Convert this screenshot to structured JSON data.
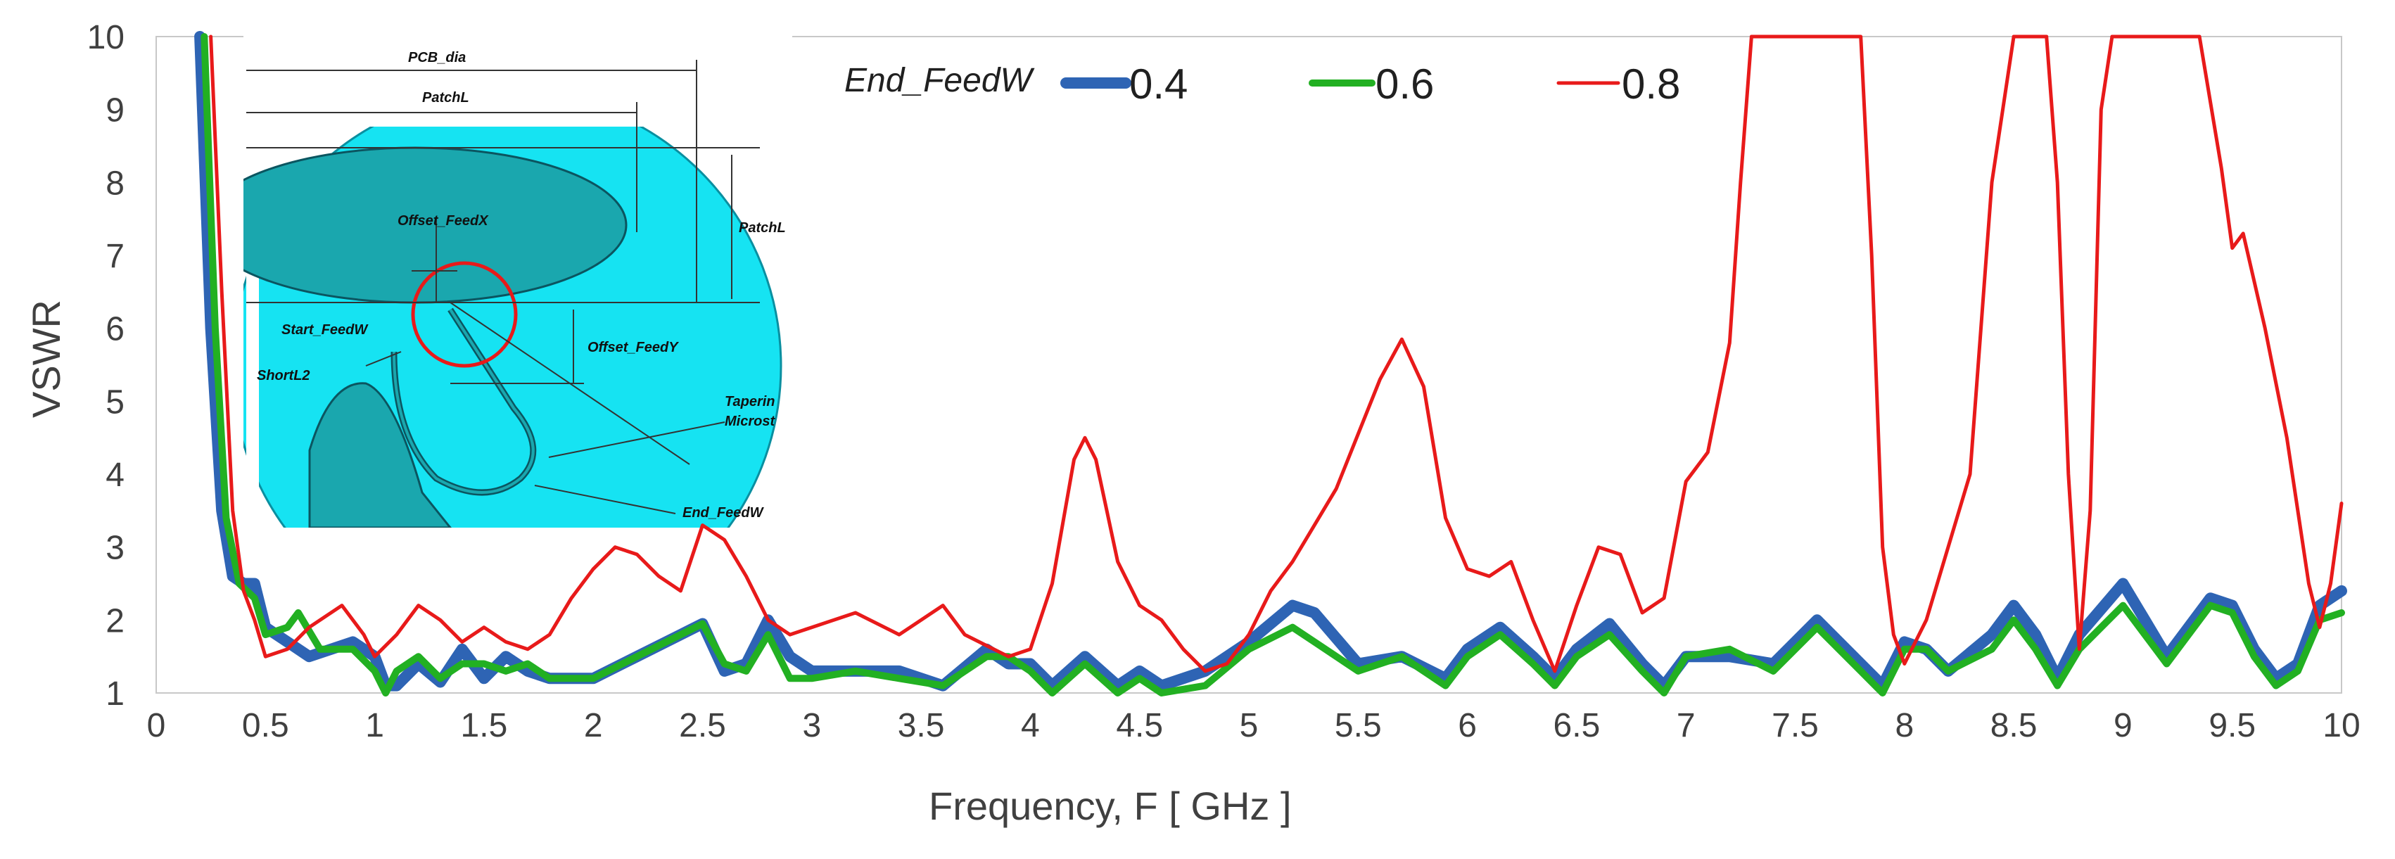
{
  "chart_data": {
    "type": "line",
    "title": "",
    "xlabel": "Frequency, F [ GHz ]",
    "ylabel": "VSWR",
    "xlim": [
      0,
      10
    ],
    "ylim": [
      1,
      10
    ],
    "x_ticks": [
      "0",
      "0.5",
      "1",
      "1.5",
      "2",
      "2.5",
      "3",
      "3.5",
      "4",
      "4.5",
      "5",
      "5.5",
      "6",
      "6.5",
      "7",
      "7.5",
      "8",
      "8.5",
      "9",
      "9.5",
      "10"
    ],
    "y_ticks": [
      "1",
      "2",
      "3",
      "4",
      "5",
      "6",
      "7",
      "8",
      "9",
      "10"
    ],
    "grid": false,
    "legend": {
      "title": "End_FeedW",
      "placement": "top-center"
    },
    "series": [
      {
        "name": "0.4",
        "color": "#2e64b4",
        "points": [
          [
            0.2,
            10
          ],
          [
            0.25,
            6
          ],
          [
            0.3,
            3.5
          ],
          [
            0.35,
            2.6
          ],
          [
            0.4,
            2.5
          ],
          [
            0.45,
            2.5
          ],
          [
            0.5,
            1.9
          ],
          [
            0.6,
            1.7
          ],
          [
            0.7,
            1.5
          ],
          [
            0.8,
            1.6
          ],
          [
            0.9,
            1.7
          ],
          [
            1.0,
            1.5
          ],
          [
            1.05,
            1.1
          ],
          [
            1.1,
            1.1
          ],
          [
            1.2,
            1.4
          ],
          [
            1.3,
            1.15
          ],
          [
            1.4,
            1.6
          ],
          [
            1.5,
            1.2
          ],
          [
            1.6,
            1.5
          ],
          [
            1.7,
            1.3
          ],
          [
            1.8,
            1.2
          ],
          [
            2.0,
            1.2
          ],
          [
            2.2,
            1.5
          ],
          [
            2.4,
            1.8
          ],
          [
            2.5,
            1.95
          ],
          [
            2.6,
            1.3
          ],
          [
            2.7,
            1.4
          ],
          [
            2.8,
            2.0
          ],
          [
            2.9,
            1.5
          ],
          [
            3.0,
            1.3
          ],
          [
            3.2,
            1.3
          ],
          [
            3.4,
            1.3
          ],
          [
            3.6,
            1.1
          ],
          [
            3.8,
            1.6
          ],
          [
            3.9,
            1.4
          ],
          [
            4.0,
            1.4
          ],
          [
            4.1,
            1.1
          ],
          [
            4.25,
            1.5
          ],
          [
            4.4,
            1.1
          ],
          [
            4.5,
            1.3
          ],
          [
            4.6,
            1.1
          ],
          [
            4.8,
            1.3
          ],
          [
            5.0,
            1.7
          ],
          [
            5.2,
            2.2
          ],
          [
            5.3,
            2.1
          ],
          [
            5.5,
            1.4
          ],
          [
            5.7,
            1.5
          ],
          [
            5.9,
            1.2
          ],
          [
            6.0,
            1.6
          ],
          [
            6.15,
            1.9
          ],
          [
            6.3,
            1.5
          ],
          [
            6.4,
            1.2
          ],
          [
            6.5,
            1.6
          ],
          [
            6.65,
            1.95
          ],
          [
            6.8,
            1.4
          ],
          [
            6.9,
            1.1
          ],
          [
            7.0,
            1.5
          ],
          [
            7.2,
            1.5
          ],
          [
            7.4,
            1.4
          ],
          [
            7.6,
            2.0
          ],
          [
            7.8,
            1.4
          ],
          [
            7.9,
            1.1
          ],
          [
            8.0,
            1.7
          ],
          [
            8.1,
            1.6
          ],
          [
            8.2,
            1.3
          ],
          [
            8.4,
            1.8
          ],
          [
            8.5,
            2.2
          ],
          [
            8.6,
            1.8
          ],
          [
            8.7,
            1.2
          ],
          [
            8.8,
            1.8
          ],
          [
            9.0,
            2.5
          ],
          [
            9.1,
            2.0
          ],
          [
            9.2,
            1.5
          ],
          [
            9.4,
            2.3
          ],
          [
            9.5,
            2.2
          ],
          [
            9.6,
            1.6
          ],
          [
            9.7,
            1.2
          ],
          [
            9.8,
            1.4
          ],
          [
            9.9,
            2.2
          ],
          [
            10.0,
            2.4
          ]
        ]
      },
      {
        "name": "0.6",
        "color": "#22b022",
        "points": [
          [
            0.22,
            10
          ],
          [
            0.27,
            6
          ],
          [
            0.32,
            3.4
          ],
          [
            0.38,
            2.5
          ],
          [
            0.45,
            2.3
          ],
          [
            0.5,
            1.8
          ],
          [
            0.6,
            1.9
          ],
          [
            0.65,
            2.1
          ],
          [
            0.75,
            1.6
          ],
          [
            0.9,
            1.6
          ],
          [
            1.0,
            1.3
          ],
          [
            1.05,
            1.0
          ],
          [
            1.1,
            1.3
          ],
          [
            1.2,
            1.5
          ],
          [
            1.3,
            1.2
          ],
          [
            1.4,
            1.4
          ],
          [
            1.5,
            1.4
          ],
          [
            1.6,
            1.3
          ],
          [
            1.7,
            1.4
          ],
          [
            1.8,
            1.2
          ],
          [
            2.0,
            1.2
          ],
          [
            2.2,
            1.5
          ],
          [
            2.4,
            1.8
          ],
          [
            2.5,
            1.95
          ],
          [
            2.6,
            1.4
          ],
          [
            2.7,
            1.3
          ],
          [
            2.8,
            1.8
          ],
          [
            2.9,
            1.2
          ],
          [
            3.0,
            1.2
          ],
          [
            3.2,
            1.3
          ],
          [
            3.4,
            1.2
          ],
          [
            3.6,
            1.1
          ],
          [
            3.8,
            1.5
          ],
          [
            3.9,
            1.5
          ],
          [
            4.0,
            1.3
          ],
          [
            4.1,
            1.0
          ],
          [
            4.25,
            1.4
          ],
          [
            4.4,
            1.0
          ],
          [
            4.5,
            1.2
          ],
          [
            4.6,
            1.0
          ],
          [
            4.8,
            1.1
          ],
          [
            5.0,
            1.6
          ],
          [
            5.2,
            1.9
          ],
          [
            5.3,
            1.7
          ],
          [
            5.5,
            1.3
          ],
          [
            5.7,
            1.5
          ],
          [
            5.9,
            1.1
          ],
          [
            6.0,
            1.5
          ],
          [
            6.15,
            1.8
          ],
          [
            6.3,
            1.4
          ],
          [
            6.4,
            1.1
          ],
          [
            6.5,
            1.5
          ],
          [
            6.65,
            1.8
          ],
          [
            6.8,
            1.3
          ],
          [
            6.9,
            1.0
          ],
          [
            7.0,
            1.5
          ],
          [
            7.2,
            1.6
          ],
          [
            7.4,
            1.3
          ],
          [
            7.6,
            1.9
          ],
          [
            7.8,
            1.3
          ],
          [
            7.9,
            1.0
          ],
          [
            8.0,
            1.6
          ],
          [
            8.1,
            1.6
          ],
          [
            8.2,
            1.3
          ],
          [
            8.4,
            1.6
          ],
          [
            8.5,
            2.0
          ],
          [
            8.6,
            1.6
          ],
          [
            8.7,
            1.1
          ],
          [
            8.8,
            1.6
          ],
          [
            9.0,
            2.2
          ],
          [
            9.1,
            1.8
          ],
          [
            9.2,
            1.4
          ],
          [
            9.4,
            2.2
          ],
          [
            9.5,
            2.1
          ],
          [
            9.6,
            1.5
          ],
          [
            9.7,
            1.1
          ],
          [
            9.8,
            1.3
          ],
          [
            9.9,
            2.0
          ],
          [
            10.0,
            2.1
          ]
        ]
      },
      {
        "name": "0.8",
        "color": "#e81a1a",
        "points": [
          [
            0.25,
            10
          ],
          [
            0.3,
            6.5
          ],
          [
            0.35,
            3.5
          ],
          [
            0.4,
            2.4
          ],
          [
            0.45,
            2.0
          ],
          [
            0.5,
            1.5
          ],
          [
            0.6,
            1.6
          ],
          [
            0.7,
            1.9
          ],
          [
            0.85,
            2.2
          ],
          [
            0.95,
            1.8
          ],
          [
            1.0,
            1.5
          ],
          [
            1.1,
            1.8
          ],
          [
            1.2,
            2.2
          ],
          [
            1.3,
            2.0
          ],
          [
            1.4,
            1.7
          ],
          [
            1.5,
            1.9
          ],
          [
            1.6,
            1.7
          ],
          [
            1.7,
            1.6
          ],
          [
            1.8,
            1.8
          ],
          [
            1.9,
            2.3
          ],
          [
            2.0,
            2.7
          ],
          [
            2.1,
            3.0
          ],
          [
            2.2,
            2.9
          ],
          [
            2.3,
            2.6
          ],
          [
            2.4,
            2.4
          ],
          [
            2.5,
            3.3
          ],
          [
            2.6,
            3.1
          ],
          [
            2.7,
            2.6
          ],
          [
            2.8,
            2.0
          ],
          [
            2.9,
            1.8
          ],
          [
            3.0,
            1.9
          ],
          [
            3.2,
            2.1
          ],
          [
            3.4,
            1.8
          ],
          [
            3.6,
            2.2
          ],
          [
            3.7,
            1.8
          ],
          [
            3.9,
            1.5
          ],
          [
            4.0,
            1.6
          ],
          [
            4.1,
            2.5
          ],
          [
            4.2,
            4.2
          ],
          [
            4.25,
            4.5
          ],
          [
            4.3,
            4.2
          ],
          [
            4.4,
            2.8
          ],
          [
            4.5,
            2.2
          ],
          [
            4.6,
            2.0
          ],
          [
            4.7,
            1.6
          ],
          [
            4.8,
            1.3
          ],
          [
            4.9,
            1.4
          ],
          [
            5.0,
            1.8
          ],
          [
            5.1,
            2.4
          ],
          [
            5.2,
            2.8
          ],
          [
            5.4,
            3.8
          ],
          [
            5.6,
            5.3
          ],
          [
            5.7,
            5.85
          ],
          [
            5.8,
            5.2
          ],
          [
            5.9,
            3.4
          ],
          [
            6.0,
            2.7
          ],
          [
            6.1,
            2.6
          ],
          [
            6.2,
            2.8
          ],
          [
            6.3,
            2.0
          ],
          [
            6.4,
            1.3
          ],
          [
            6.5,
            2.2
          ],
          [
            6.6,
            3.0
          ],
          [
            6.7,
            2.9
          ],
          [
            6.8,
            2.1
          ],
          [
            6.9,
            2.3
          ],
          [
            7.0,
            3.9
          ],
          [
            7.1,
            4.3
          ],
          [
            7.2,
            5.8
          ],
          [
            7.25,
            8.0
          ],
          [
            7.3,
            10
          ],
          [
            7.8,
            10
          ],
          [
            7.85,
            7.0
          ],
          [
            7.9,
            3.0
          ],
          [
            7.95,
            1.8
          ],
          [
            8.0,
            1.4
          ],
          [
            8.1,
            2.0
          ],
          [
            8.3,
            4.0
          ],
          [
            8.4,
            8.0
          ],
          [
            8.5,
            10
          ],
          [
            8.65,
            10
          ],
          [
            8.7,
            8.0
          ],
          [
            8.75,
            4.0
          ],
          [
            8.8,
            1.6
          ],
          [
            8.85,
            3.5
          ],
          [
            8.9,
            9.0
          ],
          [
            8.95,
            10
          ],
          [
            9.35,
            10
          ],
          [
            9.45,
            8.2
          ],
          [
            9.5,
            7.1
          ],
          [
            9.55,
            7.3
          ],
          [
            9.65,
            6.0
          ],
          [
            9.75,
            4.5
          ],
          [
            9.85,
            2.5
          ],
          [
            9.9,
            1.9
          ],
          [
            9.95,
            2.5
          ],
          [
            10.0,
            3.6
          ]
        ]
      }
    ],
    "inset_labels": [
      "PCB_dia",
      "PatchL",
      "PatchL",
      "Offset_FeedX",
      "Start_FeedW",
      "Offset_FeedY",
      "ShortL2",
      "Taperin",
      "Microst",
      "End_FeedW"
    ]
  }
}
